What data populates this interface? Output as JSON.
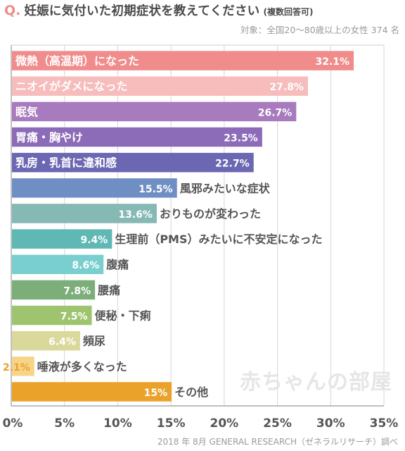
{
  "title": {
    "q_mark": "Q.",
    "text": "妊娠に気付いた初期症状を教えてください",
    "note": "(複数回答可)"
  },
  "subtitle": "対象：全国20～80歳以上の女性 374 名",
  "source": "2018 年 8月 GENERAL RESEARCH（ゼネラルリサーチ）調べ",
  "watermark": "赤ちゃんの部屋",
  "chart_data": {
    "type": "bar",
    "orientation": "horizontal",
    "grid": true,
    "xlim": [
      0,
      35
    ],
    "xticks": [
      "0%",
      "5%",
      "10%",
      "15%",
      "20%",
      "25%",
      "30%",
      "35%"
    ],
    "categories": [
      "微熱（高温期）になった",
      "ニオイがダメになった",
      "眠気",
      "胃痛・胸やけ",
      "乳房・乳首に違和感",
      "風邪みたいな症状",
      "おりものが変わった",
      "生理前（PMS）みたいに不安定になった",
      "腹痛",
      "腰痛",
      "便秘・下痢",
      "頻尿",
      "唾液が多くなった",
      "その他"
    ],
    "values": [
      32.1,
      27.8,
      26.7,
      23.5,
      22.7,
      15.5,
      13.6,
      9.4,
      8.6,
      7.8,
      7.5,
      6.4,
      2.1,
      15
    ],
    "value_labels": [
      "32.1%",
      "27.8%",
      "26.7%",
      "23.5%",
      "22.7%",
      "15.5%",
      "13.6%",
      "9.4%",
      "8.6%",
      "7.8%",
      "7.5%",
      "6.4%",
      "2.1%",
      "15%"
    ],
    "colors": [
      "#f08c8c",
      "#f7bcbc",
      "#a77bbd",
      "#8c6bb8",
      "#6b67b2",
      "#6f8fc4",
      "#86b8b4",
      "#5fb8b4",
      "#79cfcf",
      "#7cae7a",
      "#9ec470",
      "#dad89a",
      "#f7d488",
      "#eaa22a"
    ],
    "label_colors": [
      "#ffffff",
      "#ffffff",
      "#ffffff",
      "#ffffff",
      "#ffffff",
      "#ffffff",
      "#ffffff",
      "#ffffff",
      "#ffffff",
      "#ffffff",
      "#ffffff",
      "#ffffff",
      "#eaa22a",
      "#ffffff"
    ]
  }
}
